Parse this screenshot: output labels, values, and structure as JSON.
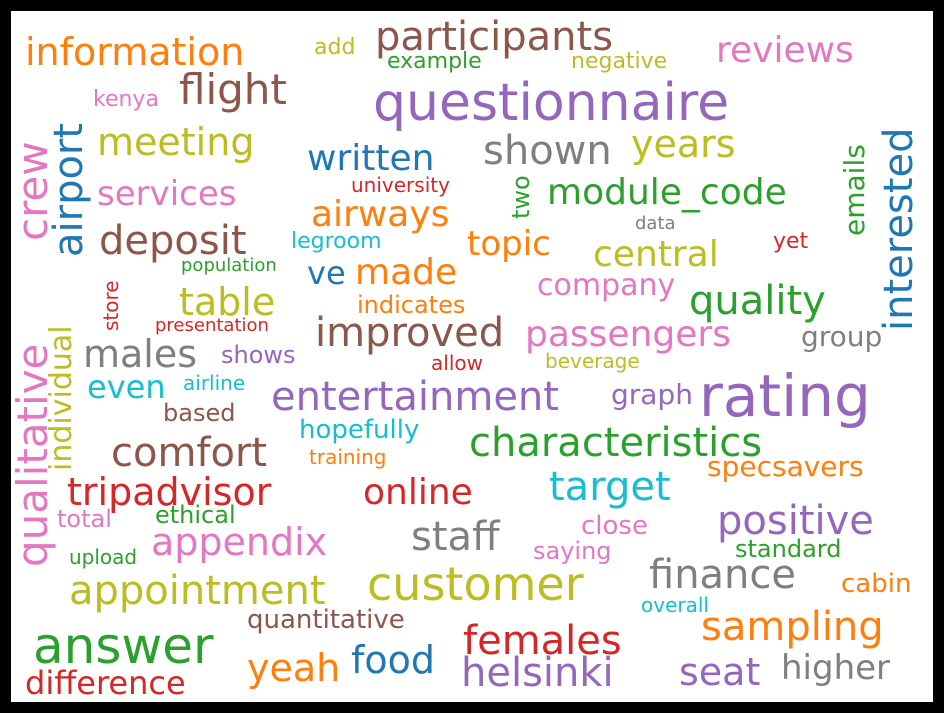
{
  "colors": {
    "blue": "#1f77b4",
    "orange": "#ff7f0e",
    "green": "#2ca02c",
    "red": "#d62728",
    "purple": "#9467bd",
    "brown": "#8c564b",
    "pink": "#e377c2",
    "gray": "#7f7f7f",
    "olive": "#bcbd22",
    "cyan": "#17becf"
  },
  "words": [
    {
      "id": "questionnaire",
      "text": "questionnaire",
      "color": "purple"
    },
    {
      "id": "rating",
      "text": "rating",
      "color": "purple"
    },
    {
      "id": "customer",
      "text": "customer",
      "color": "olive"
    },
    {
      "id": "answer",
      "text": "answer",
      "color": "green"
    },
    {
      "id": "participants",
      "text": "participants",
      "color": "brown"
    },
    {
      "id": "information",
      "text": "information",
      "color": "orange"
    },
    {
      "id": "flight",
      "text": "flight",
      "color": "brown"
    },
    {
      "id": "reviews",
      "text": "reviews",
      "color": "pink"
    },
    {
      "id": "add",
      "text": "add",
      "color": "olive"
    },
    {
      "id": "example",
      "text": "example",
      "color": "green"
    },
    {
      "id": "negative",
      "text": "negative",
      "color": "olive"
    },
    {
      "id": "kenya",
      "text": "kenya",
      "color": "pink"
    },
    {
      "id": "meeting",
      "text": "meeting",
      "color": "olive"
    },
    {
      "id": "written",
      "text": "written",
      "color": "blue"
    },
    {
      "id": "shown",
      "text": "shown",
      "color": "gray"
    },
    {
      "id": "years",
      "text": "years",
      "color": "olive"
    },
    {
      "id": "services",
      "text": "services",
      "color": "pink"
    },
    {
      "id": "university",
      "text": "university",
      "color": "red"
    },
    {
      "id": "module_code",
      "text": "module_code",
      "color": "green"
    },
    {
      "id": "airways",
      "text": "airways",
      "color": "orange"
    },
    {
      "id": "deposit",
      "text": "deposit",
      "color": "brown"
    },
    {
      "id": "legroom",
      "text": "legroom",
      "color": "cyan"
    },
    {
      "id": "topic",
      "text": "topic",
      "color": "orange"
    },
    {
      "id": "central",
      "text": "central",
      "color": "olive"
    },
    {
      "id": "data",
      "text": "data",
      "color": "gray"
    },
    {
      "id": "yet",
      "text": "yet",
      "color": "red"
    },
    {
      "id": "population",
      "text": "population",
      "color": "green"
    },
    {
      "id": "ve",
      "text": "ve",
      "color": "blue"
    },
    {
      "id": "made",
      "text": "made",
      "color": "orange"
    },
    {
      "id": "company",
      "text": "company",
      "color": "pink"
    },
    {
      "id": "table",
      "text": "table",
      "color": "olive"
    },
    {
      "id": "quality",
      "text": "quality",
      "color": "green"
    },
    {
      "id": "indicates",
      "text": "indicates",
      "color": "orange"
    },
    {
      "id": "presentation",
      "text": "presentation",
      "color": "red"
    },
    {
      "id": "improved",
      "text": "improved",
      "color": "brown"
    },
    {
      "id": "passengers",
      "text": "passengers",
      "color": "pink"
    },
    {
      "id": "group",
      "text": "group",
      "color": "gray"
    },
    {
      "id": "males",
      "text": "males",
      "color": "gray"
    },
    {
      "id": "shows",
      "text": "shows",
      "color": "purple"
    },
    {
      "id": "allow",
      "text": "allow",
      "color": "red"
    },
    {
      "id": "beverage",
      "text": "beverage",
      "color": "olive"
    },
    {
      "id": "even",
      "text": "even",
      "color": "cyan"
    },
    {
      "id": "airline",
      "text": "airline",
      "color": "cyan"
    },
    {
      "id": "entertainment",
      "text": "entertainment",
      "color": "purple"
    },
    {
      "id": "graph",
      "text": "graph",
      "color": "purple"
    },
    {
      "id": "based",
      "text": "based",
      "color": "brown"
    },
    {
      "id": "hopefully",
      "text": "hopefully",
      "color": "cyan"
    },
    {
      "id": "characteristics",
      "text": "characteristics",
      "color": "green"
    },
    {
      "id": "comfort",
      "text": "comfort",
      "color": "brown"
    },
    {
      "id": "training",
      "text": "training",
      "color": "orange"
    },
    {
      "id": "specsavers",
      "text": "specsavers",
      "color": "orange"
    },
    {
      "id": "tripadvisor",
      "text": "tripadvisor",
      "color": "red"
    },
    {
      "id": "online",
      "text": "online",
      "color": "red"
    },
    {
      "id": "target",
      "text": "target",
      "color": "cyan"
    },
    {
      "id": "total",
      "text": "total",
      "color": "pink"
    },
    {
      "id": "ethical",
      "text": "ethical",
      "color": "green"
    },
    {
      "id": "positive",
      "text": "positive",
      "color": "purple"
    },
    {
      "id": "appendix",
      "text": "appendix",
      "color": "pink"
    },
    {
      "id": "staff",
      "text": "staff",
      "color": "gray"
    },
    {
      "id": "close",
      "text": "close",
      "color": "pink"
    },
    {
      "id": "saying",
      "text": "saying",
      "color": "pink"
    },
    {
      "id": "standard",
      "text": "standard",
      "color": "green"
    },
    {
      "id": "upload",
      "text": "upload",
      "color": "green"
    },
    {
      "id": "finance",
      "text": "finance",
      "color": "gray"
    },
    {
      "id": "appointment",
      "text": "appointment",
      "color": "olive"
    },
    {
      "id": "cabin",
      "text": "cabin",
      "color": "orange"
    },
    {
      "id": "overall",
      "text": "overall",
      "color": "cyan"
    },
    {
      "id": "quantitative",
      "text": "quantitative",
      "color": "brown"
    },
    {
      "id": "sampling",
      "text": "sampling",
      "color": "orange"
    },
    {
      "id": "females",
      "text": "females",
      "color": "red"
    },
    {
      "id": "food",
      "text": "food",
      "color": "blue"
    },
    {
      "id": "yeah",
      "text": "yeah",
      "color": "orange"
    },
    {
      "id": "higher",
      "text": "higher",
      "color": "gray"
    },
    {
      "id": "seat",
      "text": "seat",
      "color": "purple"
    },
    {
      "id": "helsinki",
      "text": "helsinki",
      "color": "purple"
    },
    {
      "id": "difference",
      "text": "difference",
      "color": "red"
    },
    {
      "id": "crew",
      "text": "crew",
      "color": "pink"
    },
    {
      "id": "airport",
      "text": "airport",
      "color": "blue"
    },
    {
      "id": "qualitative",
      "text": "qualitative",
      "color": "pink"
    },
    {
      "id": "individual",
      "text": "individual",
      "color": "olive"
    },
    {
      "id": "store",
      "text": "store",
      "color": "red"
    },
    {
      "id": "two",
      "text": "two",
      "color": "green"
    },
    {
      "id": "emails",
      "text": "emails",
      "color": "green"
    },
    {
      "id": "interested",
      "text": "interested",
      "color": "blue"
    }
  ]
}
